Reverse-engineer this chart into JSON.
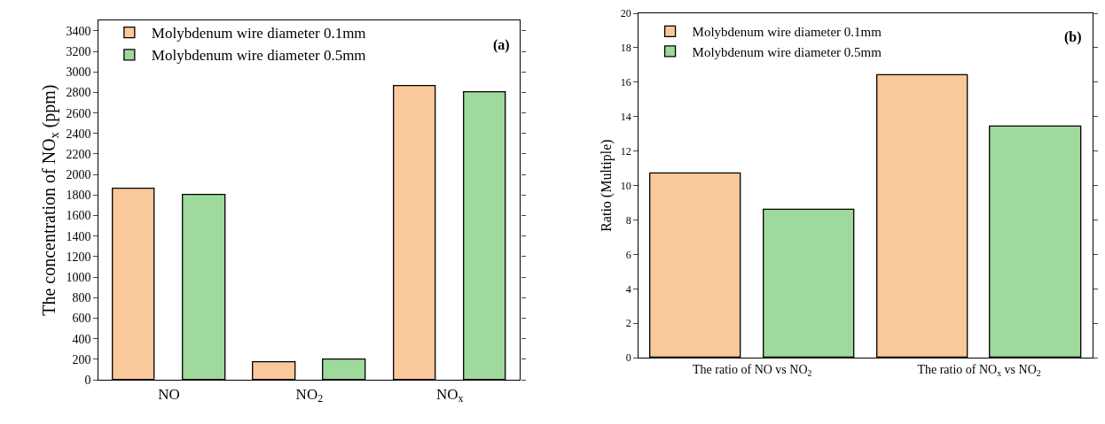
{
  "chart_data": [
    {
      "type": "bar",
      "ylabel": "The concentration of NO$_{x}$ (ppm)",
      "categories": [
        "NO",
        "NO$_{2}$",
        "NO$_{x}$"
      ],
      "series": [
        {
          "name": "Molybdenum wire diameter 0.1mm",
          "color": "#f9c89b",
          "values": [
            1860,
            170,
            2860
          ]
        },
        {
          "name": "Molybdenum wire diameter 0.5mm",
          "color": "#9fd99b",
          "values": [
            1800,
            200,
            2800
          ]
        }
      ],
      "ylim": [
        0,
        3500
      ],
      "yticks": [
        0,
        200,
        400,
        600,
        800,
        1000,
        1200,
        1400,
        1600,
        1800,
        2000,
        2200,
        2400,
        2600,
        2800,
        3000,
        3200,
        3400
      ],
      "annotations": [
        "(a)"
      ],
      "legend": "top left",
      "grid": false
    },
    {
      "type": "bar",
      "ylabel": "Ratio (Multiple)",
      "categories": [
        "The ratio of NO vs NO$_{2}$",
        "The ratio of NO$_{x}$ vs NO$_{2}$"
      ],
      "series": [
        {
          "name": "Molybdenum wire diameter 0.1mm",
          "color": "#f9c89b",
          "values": [
            10.7,
            16.4
          ]
        },
        {
          "name": "Molybdenum wire diameter 0.5mm",
          "color": "#9fd99b",
          "values": [
            8.6,
            13.4
          ]
        }
      ],
      "ylim": [
        0,
        20
      ],
      "yticks": [
        0,
        2,
        4,
        6,
        8,
        10,
        12,
        14,
        16,
        18,
        20
      ],
      "annotations": [
        "(b)"
      ],
      "legend": "top left",
      "grid": false
    }
  ]
}
